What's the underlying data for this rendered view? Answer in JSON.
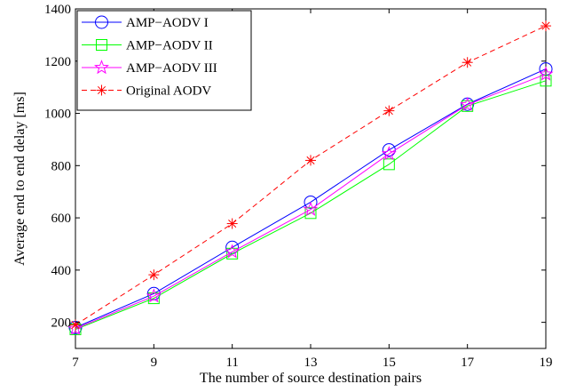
{
  "chart_data": {
    "type": "line",
    "title": "",
    "xlabel": "The number of source destination pairs",
    "ylabel": "Average end to end delay [ms]",
    "x": [
      7,
      9,
      11,
      13,
      15,
      17,
      19
    ],
    "xlim": [
      7,
      19
    ],
    "ylim": [
      100,
      1400
    ],
    "xticks": [
      7,
      9,
      11,
      13,
      15,
      17,
      19
    ],
    "yticks": [
      200,
      400,
      600,
      800,
      1000,
      1200,
      1400
    ],
    "grid": false,
    "legend_position": "top-left",
    "series": [
      {
        "name": "AMP−AODV I",
        "values": [
          180,
          310,
          487,
          660,
          860,
          1035,
          1170
        ],
        "color": "#0000ff",
        "marker": "circle",
        "line_style": "solid"
      },
      {
        "name": "AMP−AODV II",
        "values": [
          173,
          292,
          463,
          618,
          805,
          1028,
          1125
        ],
        "color": "#00ff00",
        "marker": "square",
        "line_style": "solid"
      },
      {
        "name": "AMP−AODV III",
        "values": [
          176,
          300,
          470,
          632,
          845,
          1033,
          1150
        ],
        "color": "#ff00ff",
        "marker": "star",
        "line_style": "solid"
      },
      {
        "name": "Original AODV",
        "values": [
          190,
          382,
          578,
          820,
          1010,
          1195,
          1335
        ],
        "color": "#ff0000",
        "marker": "asterisk",
        "line_style": "dashed"
      }
    ]
  }
}
